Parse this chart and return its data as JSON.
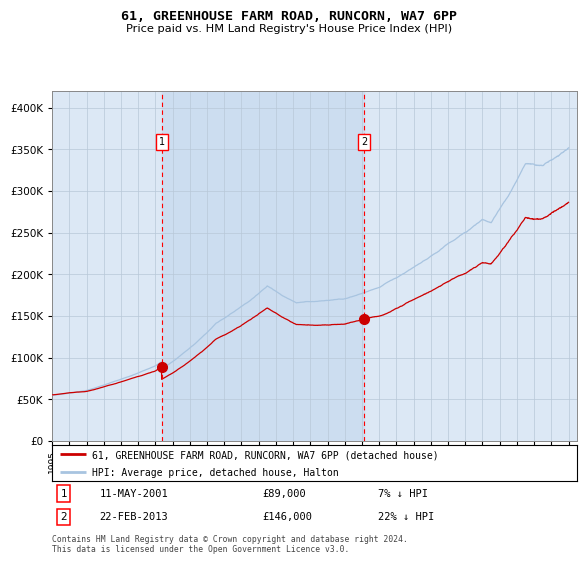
{
  "title": "61, GREENHOUSE FARM ROAD, RUNCORN, WA7 6PP",
  "subtitle": "Price paid vs. HM Land Registry's House Price Index (HPI)",
  "legend_line1": "61, GREENHOUSE FARM ROAD, RUNCORN, WA7 6PP (detached house)",
  "legend_line2": "HPI: Average price, detached house, Halton",
  "annotation1_date": "11-MAY-2001",
  "annotation1_price": 89000,
  "annotation1_hpi_diff": "7% ↓ HPI",
  "annotation2_date": "22-FEB-2013",
  "annotation2_price": 146000,
  "annotation2_hpi_diff": "22% ↓ HPI",
  "footer": "Contains HM Land Registry data © Crown copyright and database right 2024.\nThis data is licensed under the Open Government Licence v3.0.",
  "hpi_color": "#a8c4e0",
  "price_color": "#cc0000",
  "bg_color": "#dce8f5",
  "shade_color": "#ccddf0",
  "grid_color": "#b8c8d8",
  "ylim": [
    0,
    420000
  ],
  "yticks": [
    0,
    50000,
    100000,
    150000,
    200000,
    250000,
    300000,
    350000,
    400000
  ],
  "sale1_x": 2001.36,
  "sale2_x": 2013.13,
  "xstart": 1995.0,
  "xend": 2025.5
}
